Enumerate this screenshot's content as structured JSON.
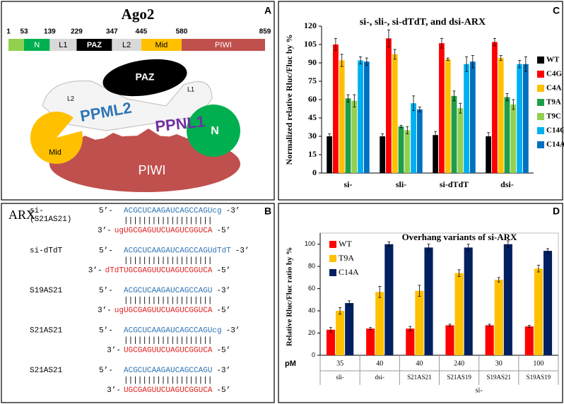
{
  "panel_a": {
    "label": "A",
    "title": "Ago2",
    "positions": [
      1,
      53,
      139,
      229,
      347,
      445,
      580,
      859
    ],
    "segment_colors": [
      "#92d050",
      "#00b050",
      "#d9d9d9",
      "#000000",
      "#d9d9d9",
      "#ffc000",
      "#c0504d"
    ],
    "domains": [
      "N",
      "L1",
      "PAZ",
      "L2",
      "Mid",
      "PIWI"
    ],
    "structure_labels": {
      "l2": "L2",
      "paz": "PAZ",
      "l1": "L1",
      "ppml2": "PPML2",
      "ppnl1": "PPNL1",
      "n": "N",
      "mid": "Mid",
      "piwi": "PIWI"
    }
  },
  "panel_b": {
    "label": "B",
    "title": "ARX",
    "five_prime": "5’-",
    "three_prime_end": "-3’",
    "three_prime": "3’-",
    "five_prime_end": "-5’",
    "pairing": "|||||||||||||||||||",
    "entries": [
      {
        "name": "si-",
        "subname": "(S21AS21)",
        "sense": "ACGCUCAAGAUCAGCCAGUcg",
        "antisense": "ugUGCGAGUUCUAGUCGGUCA"
      },
      {
        "name": "si-dTdT",
        "sense": "ACGCUCAAGAUCAGCCAGUdTdT",
        "antisense": "dTdTUGCGAGUUCUAGUCGGUCA"
      },
      {
        "name": "S19AS21",
        "sense": "ACGCUCAAGAUCAGCCAGU",
        "antisense": "ugUGCGAGUUCUAGUCGGUCA"
      },
      {
        "name": "S21AS21",
        "sense": "ACGCUCAAGAUCAGCCAGUcg",
        "antisense": "UGCGAGUUCUAGUCGGUCA"
      },
      {
        "name": "S21AS21",
        "sense": "ACGCUCAAGAUCAGCCAGU",
        "antisense": "UGCGAGUUCUAGUCGGUCA"
      }
    ]
  },
  "chart_data": [
    {
      "type": "bar",
      "panel_label": "C",
      "title": "si-, sli-, si-dTdT, and dsi-ARX",
      "ylabel": "Normalized relative Rluc/Fluc by %",
      "categories": [
        "si-",
        "sli-",
        "si-dTdT",
        "dsi-"
      ],
      "ylim": [
        0,
        120
      ],
      "yticks": [
        0,
        15,
        30,
        45,
        60,
        75,
        90,
        105,
        120
      ],
      "grid": false,
      "legend": "right",
      "series": [
        {
          "name": "WT",
          "color": "#000000",
          "values": [
            30,
            30,
            31,
            30
          ],
          "errors": [
            2,
            2,
            3,
            3
          ]
        },
        {
          "name": "C4G",
          "color": "#ff0000",
          "values": [
            105,
            110,
            106,
            107
          ],
          "errors": [
            5,
            7,
            4,
            3
          ]
        },
        {
          "name": "C4A",
          "color": "#ffc000",
          "values": [
            92,
            97,
            93,
            94
          ],
          "errors": [
            5,
            4,
            1,
            2
          ]
        },
        {
          "name": "T9A",
          "color": "#1e9e48",
          "values": [
            61,
            38,
            63,
            62
          ],
          "errors": [
            3,
            1,
            4,
            3
          ]
        },
        {
          "name": "T9C",
          "color": "#92d050",
          "values": [
            59,
            35,
            53,
            56
          ],
          "errors": [
            5,
            3,
            4,
            4
          ]
        },
        {
          "name": "C14G",
          "color": "#00b0f0",
          "values": [
            92,
            57,
            89,
            89
          ],
          "errors": [
            3,
            6,
            6,
            3
          ]
        },
        {
          "name": "C14A",
          "color": "#0070c0",
          "values": [
            91,
            52,
            91,
            89
          ],
          "errors": [
            3,
            2,
            5,
            6
          ]
        }
      ]
    },
    {
      "type": "bar",
      "panel_label": "D",
      "title": "Overhang variants of si-ARX",
      "ylabel": "Relative Rluc/Fluc ratio by %",
      "categories": [
        "sli-",
        "dsi-",
        "S21AS21",
        "S21AS19",
        "S19AS21",
        "S19AS19"
      ],
      "concentrations": [
        35,
        40,
        40,
        240,
        30,
        100
      ],
      "concentration_label": "pM",
      "x_group_label": "si-",
      "ylim": [
        0,
        110
      ],
      "yticks": [
        0,
        20,
        40,
        60,
        80,
        100
      ],
      "grid": false,
      "legend": "upper left",
      "series": [
        {
          "name": "WT",
          "color": "#ff0000",
          "values": [
            23,
            24,
            24,
            27,
            27,
            26
          ],
          "errors": [
            2,
            1,
            2,
            1,
            1,
            1
          ]
        },
        {
          "name": "T9A",
          "color": "#ffc000",
          "values": [
            40,
            57,
            58,
            74,
            68,
            78
          ],
          "errors": [
            3,
            5,
            5,
            3,
            2,
            3
          ]
        },
        {
          "name": "C14A",
          "color": "#002060",
          "values": [
            47,
            100,
            97,
            97,
            100,
            94
          ],
          "errors": [
            2,
            2,
            3,
            3,
            3,
            2
          ]
        }
      ]
    }
  ]
}
